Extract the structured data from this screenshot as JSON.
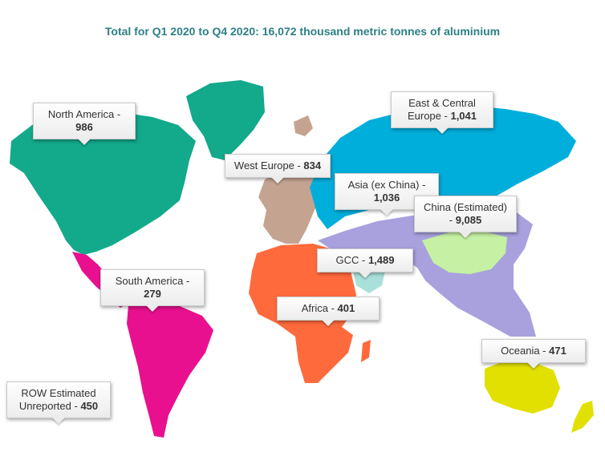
{
  "title": "Total for Q1 2020 to Q4 2020: 16,072 thousand metric tonnes of aluminium",
  "colors": {
    "title": "#2e7f86",
    "north_america": "#13a98b",
    "south_america": "#e8108e",
    "west_europe": "#c5a391",
    "east_central_europe": "#00aedb",
    "asia_ex_china": "#a8a1de",
    "china": "#c6f0a3",
    "gcc": "#a9e0d9",
    "africa": "#ff6a3d",
    "oceania": "#e2e000"
  },
  "regions": [
    {
      "id": "north_america",
      "label": "North America -",
      "value": "986"
    },
    {
      "id": "south_america",
      "label": "South America -",
      "value": "279"
    },
    {
      "id": "west_europe",
      "label": "West Europe -",
      "value": "834"
    },
    {
      "id": "east_central_europe",
      "label": "East & Central Europe -",
      "value": "1,041"
    },
    {
      "id": "asia_ex_china",
      "label": "Asia (ex China) -",
      "value": "1,036"
    },
    {
      "id": "china",
      "label": "China (Estimated) -",
      "value": "9,085"
    },
    {
      "id": "gcc",
      "label": "GCC -",
      "value": "1,489"
    },
    {
      "id": "africa",
      "label": "Africa -",
      "value": "401"
    },
    {
      "id": "oceania",
      "label": "Oceania -",
      "value": "471"
    },
    {
      "id": "row",
      "label": "ROW Estimated Unreported -",
      "value": "450"
    }
  ]
}
